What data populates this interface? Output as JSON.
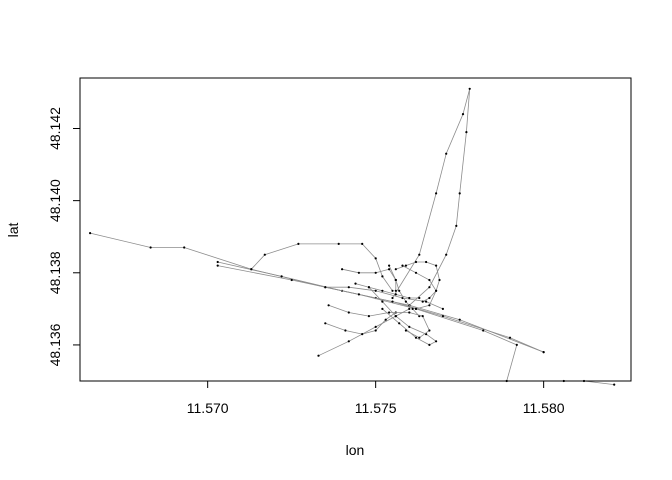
{
  "chart_data": {
    "type": "scatter",
    "title": "",
    "xlabel": "lon",
    "ylabel": "lat",
    "xlim": [
      11.5662,
      11.5826
    ],
    "ylim": [
      48.135,
      48.1434
    ],
    "xticks": [
      11.57,
      11.575,
      11.58
    ],
    "xtick_labels": [
      "11.570",
      "11.575",
      "11.580"
    ],
    "yticks": [
      48.136,
      48.138,
      48.14,
      48.142
    ],
    "ytick_labels": [
      "48.136",
      "48.138",
      "48.140",
      "48.142"
    ],
    "grid": false,
    "legend": "none",
    "colors": {
      "line": "#8c8c8c",
      "point": "#000000",
      "axis": "#000000"
    },
    "series": [
      {
        "points": [
          [
            11.5665,
            48.1391
          ],
          [
            11.5683,
            48.1387
          ],
          [
            11.5693,
            48.1387
          ],
          [
            11.5713,
            48.1381
          ],
          [
            11.5735,
            48.1376
          ],
          [
            11.575,
            48.1373
          ],
          [
            11.576,
            48.1371
          ],
          [
            11.5775,
            48.1367
          ],
          [
            11.58,
            48.1358
          ]
        ]
      },
      {
        "points": [
          [
            11.5703,
            48.1383
          ],
          [
            11.5722,
            48.1379
          ],
          [
            11.574,
            48.1375
          ],
          [
            11.5755,
            48.1372
          ],
          [
            11.577,
            48.1368
          ],
          [
            11.579,
            48.1362
          ],
          [
            11.58,
            48.1358
          ]
        ]
      },
      {
        "points": [
          [
            11.5703,
            48.1382
          ],
          [
            11.5725,
            48.1378
          ],
          [
            11.5745,
            48.1374
          ],
          [
            11.5762,
            48.137
          ],
          [
            11.5782,
            48.1364
          ],
          [
            11.5792,
            48.136
          ],
          [
            11.5789,
            48.135
          ],
          [
            11.5806,
            48.135
          ],
          [
            11.5812,
            48.135
          ],
          [
            11.5821,
            48.1349
          ]
        ]
      },
      {
        "points": [
          [
            11.5755,
            48.1373
          ],
          [
            11.5763,
            48.1385
          ],
          [
            11.5768,
            48.1402
          ],
          [
            11.5771,
            48.1413
          ],
          [
            11.5776,
            48.1424
          ],
          [
            11.5778,
            48.1431
          ],
          [
            11.5777,
            48.1419
          ],
          [
            11.5775,
            48.1402
          ],
          [
            11.5774,
            48.1393
          ],
          [
            11.5771,
            48.1385
          ],
          [
            11.5766,
            48.1376
          ],
          [
            11.576,
            48.1371
          ]
        ]
      },
      {
        "points": [
          [
            11.5713,
            48.1381
          ],
          [
            11.5717,
            48.1385
          ],
          [
            11.5727,
            48.1388
          ],
          [
            11.5739,
            48.1388
          ],
          [
            11.5746,
            48.1388
          ],
          [
            11.575,
            48.1384
          ],
          [
            11.5752,
            48.1379
          ],
          [
            11.5755,
            48.1375
          ]
        ]
      },
      {
        "points": [
          [
            11.5733,
            48.1357
          ],
          [
            11.5742,
            48.1361
          ],
          [
            11.575,
            48.1365
          ],
          [
            11.5756,
            48.1368
          ],
          [
            11.576,
            48.137
          ]
        ]
      },
      {
        "points": [
          [
            11.5735,
            48.1376
          ],
          [
            11.5742,
            48.1376
          ],
          [
            11.575,
            48.1375
          ],
          [
            11.5758,
            48.1373
          ],
          [
            11.5765,
            48.1372
          ],
          [
            11.577,
            48.137
          ]
        ]
      },
      {
        "points": [
          [
            11.5748,
            48.1376
          ],
          [
            11.5752,
            48.1372
          ],
          [
            11.5756,
            48.1368
          ],
          [
            11.576,
            48.1365
          ],
          [
            11.5765,
            48.1363
          ],
          [
            11.5768,
            48.1361
          ],
          [
            11.5766,
            48.136
          ],
          [
            11.5762,
            48.1362
          ],
          [
            11.5757,
            48.1366
          ],
          [
            11.5752,
            48.137
          ]
        ]
      },
      {
        "points": [
          [
            11.5754,
            48.1382
          ],
          [
            11.5756,
            48.1378
          ],
          [
            11.5757,
            48.1375
          ],
          [
            11.5759,
            48.1372
          ],
          [
            11.5761,
            48.137
          ],
          [
            11.5763,
            48.1368
          ]
        ]
      },
      {
        "points": [
          [
            11.5756,
            48.1381
          ],
          [
            11.5759,
            48.1382
          ],
          [
            11.5762,
            48.1383
          ],
          [
            11.5765,
            48.1383
          ],
          [
            11.5768,
            48.1382
          ],
          [
            11.5769,
            48.1378
          ],
          [
            11.5768,
            48.1375
          ],
          [
            11.5766,
            48.1373
          ],
          [
            11.5764,
            48.1372
          ]
        ]
      },
      {
        "points": [
          [
            11.5735,
            48.1366
          ],
          [
            11.5741,
            48.1364
          ],
          [
            11.5746,
            48.1363
          ],
          [
            11.575,
            48.1364
          ],
          [
            11.5753,
            48.1367
          ],
          [
            11.5756,
            48.1369
          ]
        ]
      },
      {
        "points": [
          [
            11.5736,
            48.1371
          ],
          [
            11.5742,
            48.1369
          ],
          [
            11.5748,
            48.1368
          ],
          [
            11.5754,
            48.1369
          ],
          [
            11.576,
            48.1369
          ],
          [
            11.5764,
            48.1368
          ],
          [
            11.5766,
            48.1364
          ],
          [
            11.5763,
            48.1362
          ],
          [
            11.5759,
            48.1364
          ]
        ]
      },
      {
        "points": [
          [
            11.574,
            48.1381
          ],
          [
            11.5745,
            48.138
          ],
          [
            11.575,
            48.138
          ],
          [
            11.5754,
            48.1381
          ],
          [
            11.5756,
            48.1378
          ],
          [
            11.5756,
            48.1375
          ]
        ]
      },
      {
        "points": [
          [
            11.5744,
            48.1377
          ],
          [
            11.5748,
            48.1376
          ],
          [
            11.5752,
            48.1375
          ],
          [
            11.5756,
            48.1374
          ],
          [
            11.576,
            48.1373
          ],
          [
            11.5763,
            48.1373
          ]
        ]
      },
      {
        "points": [
          [
            11.5758,
            48.1382
          ],
          [
            11.5762,
            48.138
          ],
          [
            11.5766,
            48.1378
          ],
          [
            11.5768,
            48.1375
          ],
          [
            11.5766,
            48.1371
          ],
          [
            11.5762,
            48.137
          ]
        ]
      }
    ]
  }
}
